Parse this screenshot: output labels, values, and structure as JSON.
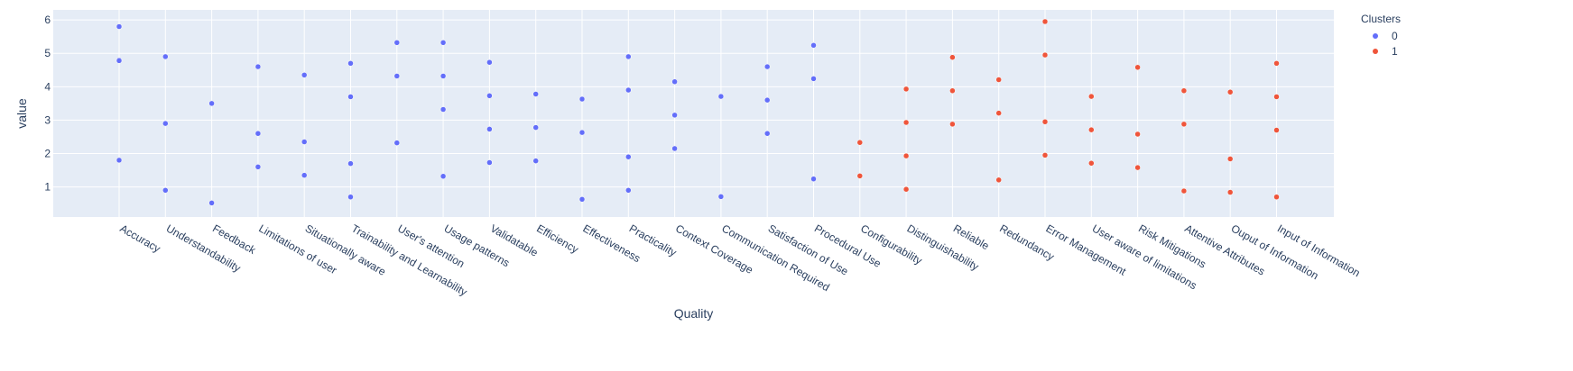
{
  "chart_data": {
    "type": "scatter",
    "xlabel": "Quality",
    "ylabel": "value",
    "ylim": [
      0.1,
      6.3
    ],
    "yticks": [
      1,
      2,
      3,
      4,
      5,
      6
    ],
    "grid": true,
    "legend": {
      "title": "Clusters",
      "position": "top-right"
    },
    "colors": {
      "plot_bg": "#e5ecf6",
      "grid": "#ffffff",
      "text": "#2a3f5f",
      "0": "#636efa",
      "1": "#ef553b"
    },
    "categories": [
      "Accuracy",
      "Understandability",
      "Feedback",
      "Limitations of user",
      "Situationally aware",
      "Trainability and Learnability",
      "User's attention",
      "Usage patterns",
      "Validatable",
      "Efficiency",
      "Effectiveness",
      "Practicality",
      "Context Coverage",
      "Communication Required",
      "Satisfaction of Use",
      "Procedural Use",
      "Configurability",
      "Distinguishability",
      "Reliable",
      "Redundancy",
      "Error Management",
      "User aware of limitations",
      "Risk Mitigations",
      "Attentive Attributes",
      "Ouput of Information",
      "Input of Information"
    ],
    "series": [
      {
        "name": "0",
        "points": [
          [
            "Accuracy",
            5.8
          ],
          [
            "Accuracy",
            4.8
          ],
          [
            "Accuracy",
            4.78
          ],
          [
            "Accuracy",
            1.8
          ],
          [
            "Understandability",
            4.9
          ],
          [
            "Understandability",
            2.9
          ],
          [
            "Understandability",
            0.9
          ],
          [
            "Feedback",
            3.5
          ],
          [
            "Feedback",
            0.52
          ],
          [
            "Limitations of user",
            4.6
          ],
          [
            "Limitations of user",
            2.6
          ],
          [
            "Limitations of user",
            1.6
          ],
          [
            "Situationally aware",
            4.35
          ],
          [
            "Situationally aware",
            2.35
          ],
          [
            "Situationally aware",
            1.35
          ],
          [
            "Trainability and Learnability",
            4.7
          ],
          [
            "Trainability and Learnability",
            3.7
          ],
          [
            "Trainability and Learnability",
            1.7
          ],
          [
            "Trainability and Learnability",
            0.7
          ],
          [
            "User's attention",
            5.32
          ],
          [
            "User's attention",
            4.32
          ],
          [
            "User's attention",
            2.32
          ],
          [
            "Usage patterns",
            5.32
          ],
          [
            "Usage patterns",
            4.32
          ],
          [
            "Usage patterns",
            3.32
          ],
          [
            "Usage patterns",
            1.32
          ],
          [
            "Validatable",
            4.73
          ],
          [
            "Validatable",
            3.73
          ],
          [
            "Validatable",
            2.73
          ],
          [
            "Validatable",
            1.73
          ],
          [
            "Efficiency",
            3.78
          ],
          [
            "Efficiency",
            2.78
          ],
          [
            "Efficiency",
            1.78
          ],
          [
            "Effectiveness",
            3.63
          ],
          [
            "Effectiveness",
            2.63
          ],
          [
            "Effectiveness",
            0.63
          ],
          [
            "Practicality",
            4.9
          ],
          [
            "Practicality",
            3.9
          ],
          [
            "Practicality",
            1.9
          ],
          [
            "Practicality",
            0.9
          ],
          [
            "Context Coverage",
            4.15
          ],
          [
            "Context Coverage",
            3.15
          ],
          [
            "Context Coverage",
            2.15
          ],
          [
            "Communication Required",
            3.71
          ],
          [
            "Communication Required",
            0.71
          ],
          [
            "Satisfaction of Use",
            4.6
          ],
          [
            "Satisfaction of Use",
            3.6
          ],
          [
            "Satisfaction of Use",
            2.6
          ],
          [
            "Procedural Use",
            5.24
          ],
          [
            "Procedural Use",
            4.24
          ],
          [
            "Procedural Use",
            1.24
          ]
        ]
      },
      {
        "name": "1",
        "points": [
          [
            "Configurability",
            2.33
          ],
          [
            "Configurability",
            1.33
          ],
          [
            "Distinguishability",
            3.93
          ],
          [
            "Distinguishability",
            2.93
          ],
          [
            "Distinguishability",
            1.93
          ],
          [
            "Distinguishability",
            0.93
          ],
          [
            "Reliable",
            4.88
          ],
          [
            "Reliable",
            3.88
          ],
          [
            "Reliable",
            2.88
          ],
          [
            "Redundancy",
            4.21
          ],
          [
            "Redundancy",
            3.21
          ],
          [
            "Redundancy",
            1.21
          ],
          [
            "Error Management",
            5.95
          ],
          [
            "Error Management",
            4.95
          ],
          [
            "Error Management",
            2.95
          ],
          [
            "Error Management",
            1.95
          ],
          [
            "User aware of limitations",
            3.71
          ],
          [
            "User aware of limitations",
            2.71
          ],
          [
            "User aware of limitations",
            1.71
          ],
          [
            "Risk Mitigations",
            4.58
          ],
          [
            "Risk Mitigations",
            2.58
          ],
          [
            "Risk Mitigations",
            1.58
          ],
          [
            "Attentive Attributes",
            3.88
          ],
          [
            "Attentive Attributes",
            2.88
          ],
          [
            "Attentive Attributes",
            0.88
          ],
          [
            "Ouput of Information",
            3.84
          ],
          [
            "Ouput of Information",
            1.84
          ],
          [
            "Ouput of Information",
            0.84
          ],
          [
            "Input of Information",
            4.7
          ],
          [
            "Input of Information",
            3.7
          ],
          [
            "Input of Information",
            2.7
          ],
          [
            "Input of Information",
            0.7
          ]
        ]
      }
    ]
  }
}
